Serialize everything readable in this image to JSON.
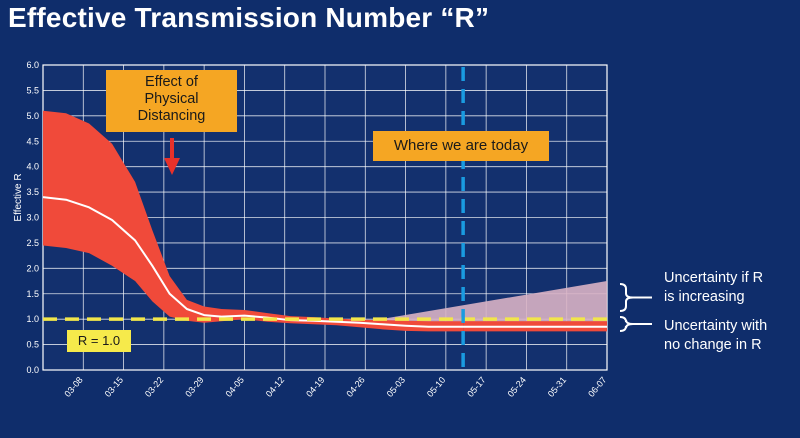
{
  "slide": {
    "title": "Effective Transmission Number “R”"
  },
  "callouts": {
    "distancing": "Effect of\nPhysical\nDistancing",
    "today": "Where we are today",
    "r_one": "R = 1.0"
  },
  "side_notes": {
    "increasing": "Uncertainty if R\nis increasing",
    "no_change": "Uncertainty with\nno change in R"
  },
  "colors": {
    "background": "#0f2d6b",
    "plot_bg": "#13306e",
    "band": "#f04a3a",
    "median": "#ffffff",
    "uncertainty_increasing": "#d9b3c4",
    "reference_line": "#f2e64a",
    "today_line": "#1a9be0",
    "callout": "#f5a623"
  },
  "chart_data": {
    "type": "area",
    "title": "",
    "xlabel": "",
    "ylabel": "Effective R",
    "ylim": [
      0,
      6
    ],
    "yticks": [
      "0.0",
      "0.5",
      "1.0",
      "1.5",
      "2.0",
      "2.5",
      "3.0",
      "3.5",
      "4.0",
      "4.5",
      "5.0",
      "5.5",
      "6.0"
    ],
    "x_ticks": [
      "03-08",
      "03-15",
      "03-22",
      "03-29",
      "04-05",
      "04-12",
      "04-19",
      "04-26",
      "05-03",
      "05-10",
      "05-17",
      "05-24",
      "05-31",
      "06-07"
    ],
    "grid": true,
    "reference_line": {
      "label": "R = 1.0",
      "y": 1.0
    },
    "today_marker": {
      "label": "Where we are today",
      "x": "05-13"
    },
    "series": [
      {
        "name": "",
        "x": [
          "03-01",
          "03-05",
          "03-09",
          "03-13",
          "03-17",
          "03-20",
          "03-23",
          "03-26",
          "03-29",
          "04-01",
          "04-05",
          "04-09",
          "04-13",
          "04-17",
          "04-21",
          "04-25",
          "04-29",
          "05-03",
          "05-07",
          "05-13"
        ],
        "median": [
          3.4,
          3.35,
          3.2,
          2.95,
          2.55,
          2.05,
          1.5,
          1.2,
          1.08,
          1.05,
          1.07,
          1.03,
          0.98,
          0.97,
          0.95,
          0.93,
          0.9,
          0.87,
          0.85,
          0.85
        ],
        "lower": [
          2.45,
          2.4,
          2.3,
          2.05,
          1.75,
          1.35,
          1.05,
          0.97,
          0.93,
          0.96,
          1.0,
          0.95,
          0.92,
          0.9,
          0.88,
          0.84,
          0.8,
          0.77,
          0.76,
          0.76
        ],
        "upper": [
          5.1,
          5.05,
          4.85,
          4.45,
          3.7,
          2.75,
          1.85,
          1.38,
          1.25,
          1.2,
          1.18,
          1.12,
          1.06,
          1.04,
          1.01,
          0.99,
          0.98,
          0.97,
          0.96,
          0.96
        ]
      }
    ],
    "projection": {
      "no_change": {
        "x": [
          "05-13",
          "06-07"
        ],
        "lower": 0.76,
        "upper": 0.96
      },
      "increasing": {
        "x": [
          "04-26",
          "06-07"
        ],
        "start": 0.95,
        "end_upper": 1.75
      }
    }
  }
}
